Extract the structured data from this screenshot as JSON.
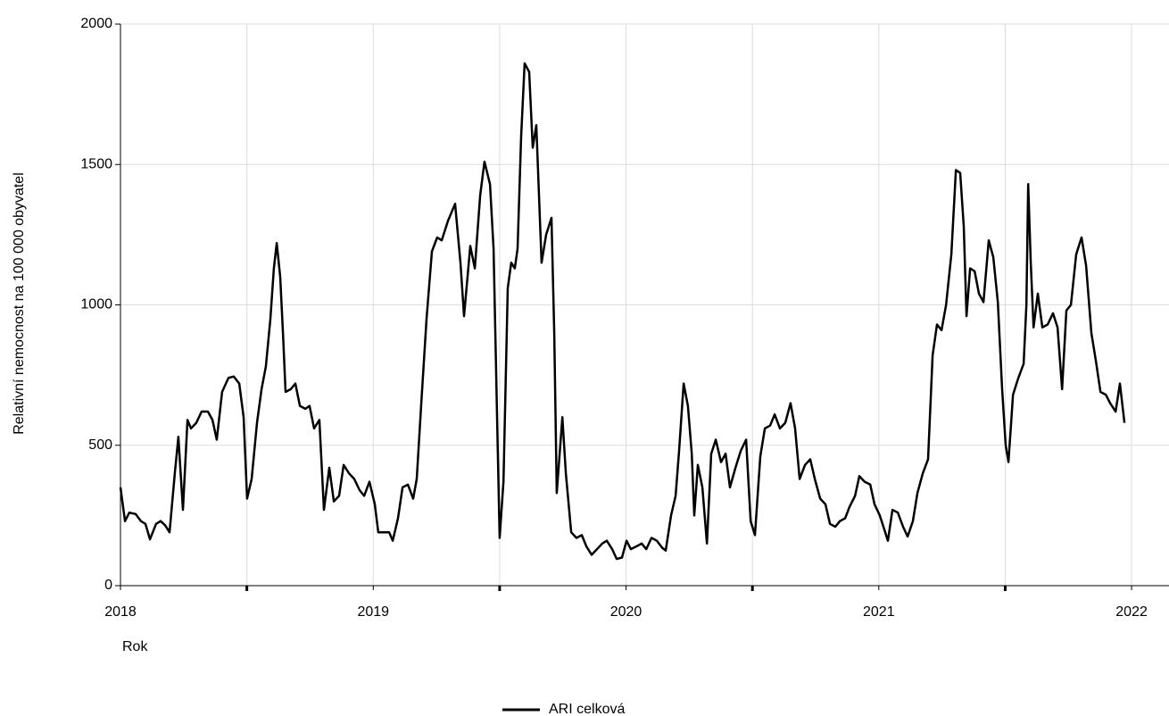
{
  "chart_data": {
    "type": "line",
    "y_label": "Relativní nemocnost na 100 000 obyvatel",
    "x_label": "Rok",
    "xlim": [
      2018,
      2022.148
    ],
    "xticks": [
      2018,
      2019,
      2020,
      2021,
      2022
    ],
    "xminor_ticks": [
      2018.5,
      2019.5,
      2020.5,
      2021.5
    ],
    "ylim": [
      0,
      2000
    ],
    "yticks": [
      0,
      500,
      1000,
      1500,
      2000
    ],
    "grid": true,
    "legend": "bottom",
    "x": [
      2018.0,
      2018.018,
      2018.035,
      2018.06,
      2018.081,
      2018.099,
      2018.117,
      2018.141,
      2018.159,
      2018.177,
      2018.194,
      2018.215,
      2018.229,
      2018.247,
      2018.265,
      2018.279,
      2018.3,
      2018.321,
      2018.346,
      2018.364,
      2018.381,
      2018.402,
      2018.427,
      2018.448,
      2018.47,
      2018.487,
      2018.501,
      2018.519,
      2018.54,
      2018.558,
      2018.575,
      2018.593,
      2018.607,
      2018.618,
      2018.632,
      2018.643,
      2018.653,
      2018.674,
      2018.692,
      2018.71,
      2018.731,
      2018.748,
      2018.766,
      2018.787,
      2018.805,
      2018.826,
      2018.844,
      2018.865,
      2018.883,
      2018.904,
      2018.925,
      2018.946,
      2018.964,
      2018.985,
      2019.006,
      2019.02,
      2019.042,
      2019.063,
      2019.077,
      2019.098,
      2019.116,
      2019.137,
      2019.158,
      2019.172,
      2019.19,
      2019.211,
      2019.232,
      2019.253,
      2019.271,
      2019.296,
      2019.324,
      2019.345,
      2019.359,
      2019.384,
      2019.402,
      2019.423,
      2019.44,
      2019.462,
      2019.476,
      2019.49,
      2019.5,
      2019.515,
      2019.532,
      2019.546,
      2019.56,
      2019.571,
      2019.585,
      2019.599,
      2019.617,
      2019.631,
      2019.645,
      2019.666,
      2019.684,
      2019.705,
      2019.716,
      2019.726,
      2019.748,
      2019.762,
      2019.783,
      2019.804,
      2019.825,
      2019.843,
      2019.864,
      2019.885,
      2019.906,
      2019.924,
      2019.945,
      2019.963,
      2019.984,
      2020.002,
      2020.019,
      2020.041,
      2020.062,
      2020.08,
      2020.101,
      2020.122,
      2020.143,
      2020.157,
      2020.178,
      2020.196,
      2020.21,
      2020.228,
      2020.245,
      2020.26,
      2020.27,
      2020.284,
      2020.302,
      2020.32,
      2020.337,
      2020.355,
      2020.376,
      2020.394,
      2020.411,
      2020.433,
      2020.454,
      2020.475,
      2020.493,
      2020.51,
      2020.531,
      2020.549,
      2020.57,
      2020.588,
      2020.609,
      2020.63,
      2020.651,
      2020.669,
      2020.687,
      2020.708,
      2020.729,
      2020.747,
      2020.768,
      2020.789,
      2020.807,
      2020.828,
      2020.846,
      2020.867,
      2020.884,
      2020.906,
      2020.923,
      2020.944,
      2020.966,
      2020.983,
      2021.004,
      2021.022,
      2021.036,
      2021.054,
      2021.075,
      2021.096,
      2021.114,
      2021.135,
      2021.153,
      2021.174,
      2021.195,
      2021.213,
      2021.23,
      2021.248,
      2021.266,
      2021.287,
      2021.305,
      2021.322,
      2021.336,
      2021.347,
      2021.361,
      2021.379,
      2021.396,
      2021.414,
      2021.435,
      2021.453,
      2021.471,
      2021.488,
      2021.502,
      2021.513,
      2021.531,
      2021.552,
      2021.573,
      2021.584,
      2021.591,
      2021.601,
      2021.612,
      2021.629,
      2021.647,
      2021.668,
      2021.689,
      2021.707,
      2021.725,
      2021.742,
      2021.76,
      2021.781,
      2021.802,
      2021.82,
      2021.841,
      2021.859,
      2021.877,
      2021.898,
      2021.915,
      2021.937,
      2021.954,
      2021.972
    ],
    "series": [
      {
        "name": "ARI celková",
        "color": "#000000",
        "values": [
          350,
          230,
          260,
          255,
          230,
          220,
          165,
          220,
          230,
          215,
          190,
          400,
          530,
          270,
          590,
          560,
          580,
          620,
          620,
          590,
          520,
          690,
          740,
          745,
          720,
          600,
          310,
          380,
          580,
          700,
          780,
          950,
          1130,
          1220,
          1100,
          900,
          690,
          700,
          720,
          640,
          630,
          640,
          560,
          590,
          270,
          420,
          300,
          320,
          430,
          400,
          380,
          340,
          320,
          370,
          290,
          190,
          190,
          190,
          160,
          240,
          350,
          360,
          310,
          380,
          650,
          950,
          1190,
          1240,
          1230,
          1300,
          1360,
          1150,
          960,
          1210,
          1130,
          1390,
          1510,
          1430,
          1200,
          590,
          170,
          370,
          1060,
          1150,
          1130,
          1200,
          1600,
          1860,
          1830,
          1560,
          1640,
          1150,
          1250,
          1310,
          900,
          330,
          600,
          400,
          190,
          170,
          180,
          140,
          110,
          130,
          150,
          160,
          130,
          95,
          100,
          160,
          130,
          140,
          150,
          130,
          170,
          160,
          135,
          125,
          250,
          320,
          480,
          720,
          640,
          470,
          250,
          430,
          350,
          150,
          470,
          520,
          440,
          470,
          350,
          420,
          480,
          520,
          230,
          180,
          460,
          560,
          570,
          610,
          560,
          580,
          650,
          560,
          380,
          430,
          450,
          380,
          310,
          290,
          220,
          210,
          230,
          240,
          280,
          320,
          390,
          370,
          360,
          290,
          250,
          200,
          160,
          270,
          260,
          210,
          175,
          230,
          330,
          400,
          450,
          820,
          930,
          910,
          1000,
          1180,
          1480,
          1470,
          1280,
          960,
          1130,
          1120,
          1040,
          1010,
          1230,
          1170,
          1010,
          700,
          500,
          440,
          680,
          740,
          790,
          1000,
          1430,
          1150,
          920,
          1040,
          920,
          930,
          970,
          920,
          700,
          980,
          1000,
          1180,
          1240,
          1140,
          900,
          800,
          690,
          680,
          650,
          620,
          720,
          580
        ]
      }
    ]
  }
}
